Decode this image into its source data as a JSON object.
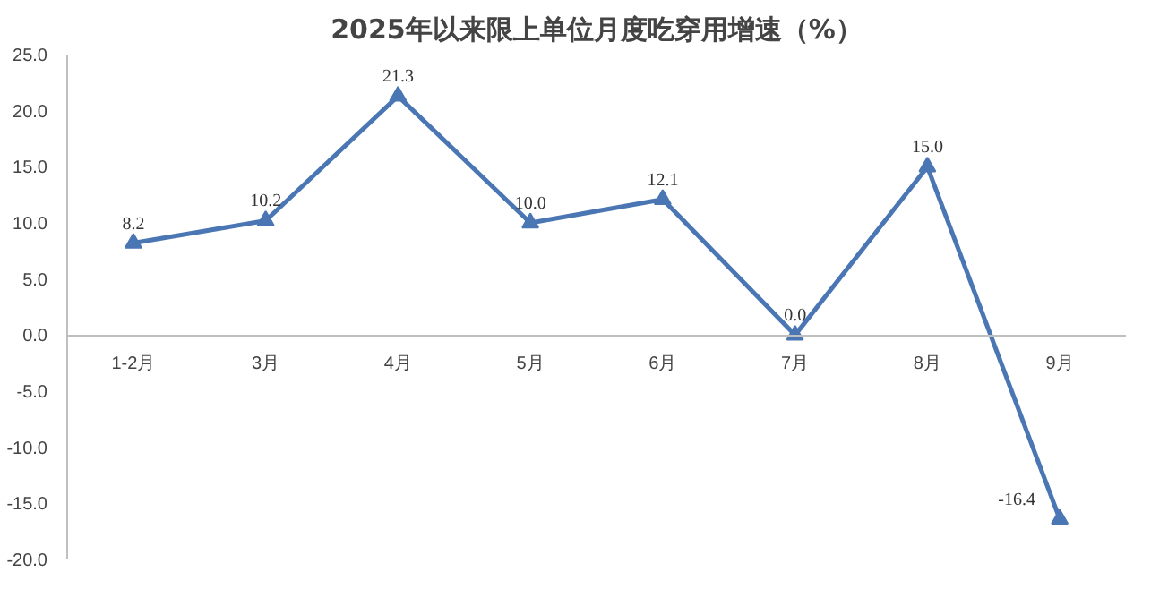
{
  "chart_data": {
    "type": "line",
    "title": "2025年以来限上单位月度吃穿用增速（%）",
    "categories": [
      "1-2月",
      "3月",
      "4月",
      "5月",
      "6月",
      "7月",
      "8月",
      "9月"
    ],
    "series": [
      {
        "color": "#4a76b4",
        "values": [
          8.2,
          10.2,
          21.3,
          10.0,
          12.1,
          0.0,
          15.0,
          -16.4
        ],
        "value_labels": [
          "8.2",
          "10.2",
          "21.3",
          "10.0",
          "12.1",
          "0.0",
          "15.0",
          "-16.4"
        ]
      }
    ],
    "ylim": [
      -20,
      25
    ],
    "yticks": [
      {
        "value": -20,
        "label": "-20.0"
      },
      {
        "value": -15,
        "label": "-15.0"
      },
      {
        "value": -10,
        "label": "-10.0"
      },
      {
        "value": -5,
        "label": "-5.0"
      },
      {
        "value": 0,
        "label": "0.0"
      },
      {
        "value": 5,
        "label": "5.0"
      },
      {
        "value": 10,
        "label": "10.0"
      },
      {
        "value": 15,
        "label": "15.0"
      },
      {
        "value": 20,
        "label": "20.0"
      },
      {
        "value": 25,
        "label": "25.0"
      }
    ],
    "marker": "triangle",
    "line_style": "solid",
    "grid": false
  }
}
